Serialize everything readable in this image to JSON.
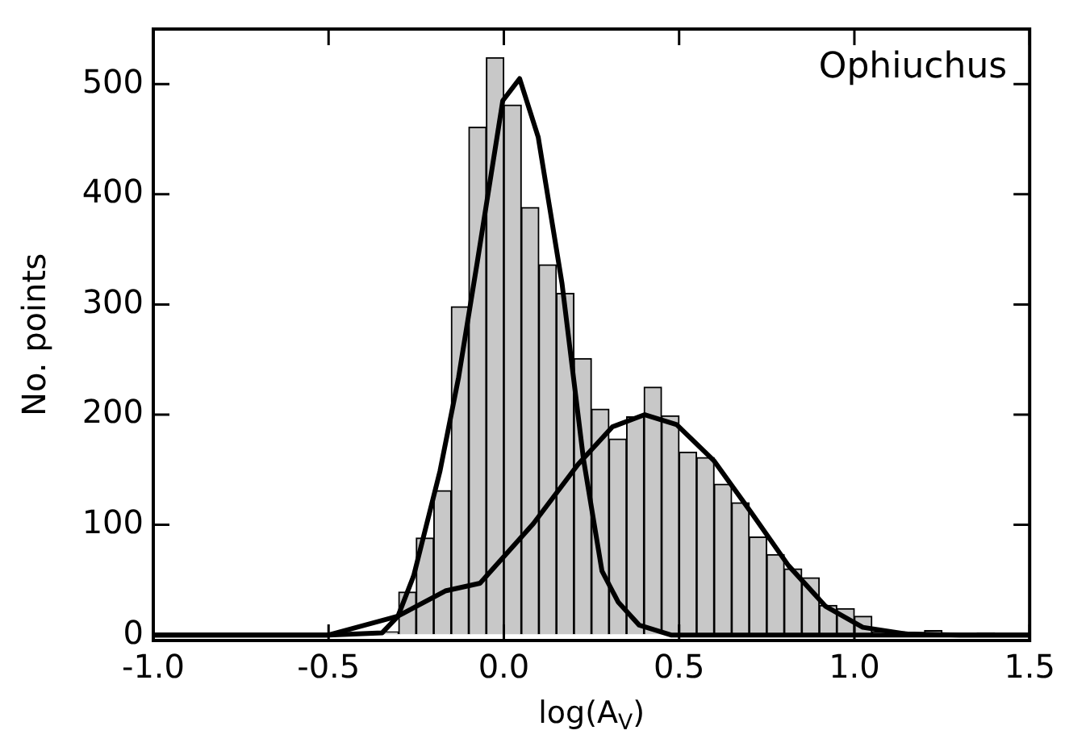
{
  "chart_data": {
    "type": "histogram",
    "title": "Ophiuchus",
    "xlabel": "log(A$_{V}$)",
    "ylabel": "No. points",
    "bins": [
      -0.4,
      -0.35,
      -0.3,
      -0.25,
      -0.2,
      -0.15,
      -0.1,
      -0.05,
      0,
      0.05,
      0.1,
      0.15,
      0.2,
      0.25,
      0.3,
      0.35,
      0.4,
      0.45,
      0.5,
      0.55,
      0.6,
      0.65,
      0.7,
      0.75,
      0.8,
      0.85,
      0.9,
      0.95,
      1.0,
      1.05,
      1.1,
      1.15,
      1.2,
      1.25,
      1.3,
      1.35,
      1.4
    ],
    "values": [
      2,
      3,
      39,
      88,
      131,
      298,
      461,
      524,
      481,
      388,
      336,
      310,
      251,
      205,
      178,
      198,
      225,
      199,
      166,
      161,
      137,
      120,
      89,
      73,
      60,
      52,
      27,
      24,
      17,
      3,
      3,
      2,
      4,
      0,
      0,
      2
    ],
    "color": "#c8c8c8",
    "series": [
      {
        "type": "line",
        "color": "#000000",
        "x": [
          -1.0,
          -0.5,
          -0.347,
          -0.302,
          -0.257,
          -0.182,
          -0.129,
          -0.076,
          -0.003,
          0.045,
          0.098,
          0.166,
          0.227,
          0.28,
          0.326,
          0.386,
          0.477,
          1.0,
          1.5
        ],
        "values": [
          0,
          0,
          2,
          17,
          54,
          149,
          234,
          338,
          485,
          505,
          452,
          319,
          160,
          58,
          30,
          9,
          0,
          0,
          0
        ]
      },
      {
        "type": "line",
        "color": "#000000",
        "x": [
          -1.0,
          -0.5,
          -0.303,
          -0.167,
          -0.068,
          0.084,
          0.212,
          0.31,
          0.402,
          0.493,
          0.6,
          0.706,
          0.812,
          0.918,
          1.024,
          1.145,
          1.3,
          1.5
        ],
        "values": [
          0,
          0,
          17,
          40,
          47,
          101,
          155,
          189,
          200,
          191,
          158,
          111,
          63,
          26,
          7,
          1,
          0,
          0
        ]
      }
    ],
    "xlim": [
      -1.0,
      1.5
    ],
    "xticks": [
      {
        "value": -1,
        "label": "-1.0"
      },
      {
        "value": -0.5,
        "label": "-0.5"
      },
      {
        "value": 0,
        "label": "0.0"
      },
      {
        "value": 0.5,
        "label": "0.5"
      },
      {
        "value": 1,
        "label": "1.0"
      },
      {
        "value": 1.5,
        "label": "1.5"
      }
    ],
    "ylim": [
      -5,
      550
    ],
    "yticks": [
      0,
      100,
      200,
      300,
      400,
      500
    ]
  }
}
